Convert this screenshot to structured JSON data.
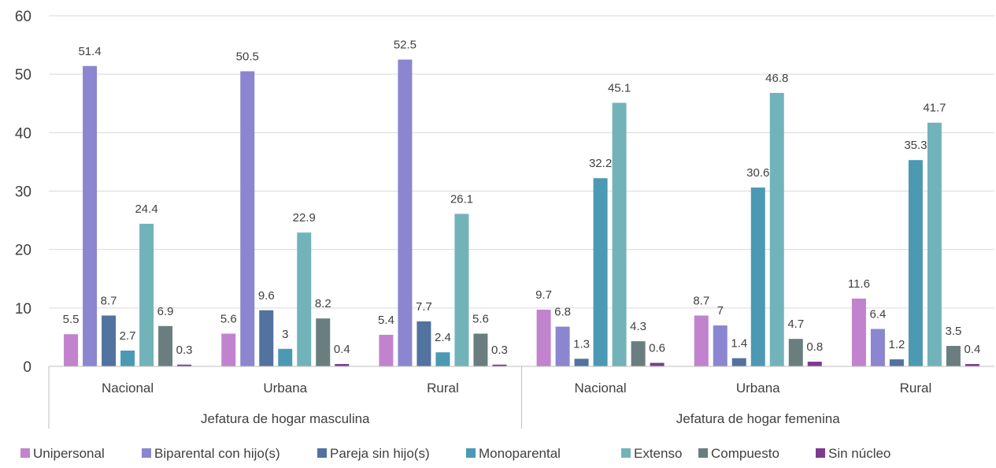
{
  "chart_data": {
    "type": "bar",
    "groups": [
      {
        "label": "Jefatura  de hogar masculina",
        "categories": [
          "Nacional",
          "Urbana",
          "Rural"
        ]
      },
      {
        "label": "Jefatura  de hogar femenina",
        "categories": [
          "Nacional",
          "Urbana",
          "Rural"
        ]
      }
    ],
    "series": [
      {
        "name": "Unipersonal",
        "color": "#c183cd",
        "values": [
          5.5,
          5.6,
          5.4,
          9.7,
          8.7,
          11.6
        ],
        "labels": [
          "5.5",
          "5.6",
          "5.4",
          "9.7",
          "8.7",
          "11.6"
        ]
      },
      {
        "name": "Biparental con hijo(s)",
        "color": "#8b86cf",
        "values": [
          51.4,
          50.5,
          52.5,
          6.8,
          7,
          6.4
        ],
        "labels": [
          "51.4",
          "50.5",
          "52.5",
          "6.8",
          "7",
          "6.4"
        ]
      },
      {
        "name": "Pareja sin hijo(s)",
        "color": "#52729f",
        "values": [
          8.7,
          9.6,
          7.7,
          1.3,
          1.4,
          1.2
        ],
        "labels": [
          "8.7",
          "9.6",
          "7.7",
          "1.3",
          "1.4",
          "1.2"
        ]
      },
      {
        "name": "Monoparental",
        "color": "#4b99b3",
        "values": [
          2.7,
          3,
          2.4,
          32.2,
          30.6,
          35.3
        ],
        "labels": [
          "2.7",
          "3",
          "2.4",
          "32.2",
          "30.6",
          "35.3"
        ]
      },
      {
        "name": "Extenso",
        "color": "#72b3ba",
        "values": [
          24.4,
          22.9,
          26.1,
          45.1,
          46.8,
          41.7
        ],
        "labels": [
          "24.4",
          "22.9",
          "26.1",
          "45.1",
          "46.8",
          "41.7"
        ]
      },
      {
        "name": "Compuesto",
        "color": "#6a7e80",
        "values": [
          6.9,
          8.2,
          5.6,
          4.3,
          4.7,
          3.5
        ],
        "labels": [
          "6.9",
          "8.2",
          "5.6",
          "4.3",
          "4.7",
          "3.5"
        ]
      },
      {
        "name": "Sin núcleo",
        "color": "#7e3a8e",
        "values": [
          0.3,
          0.4,
          0.3,
          0.6,
          0.8,
          0.4
        ],
        "labels": [
          "0.3",
          "0.4",
          "0.3",
          "0.6",
          "0.8",
          "0.4"
        ]
      }
    ],
    "ylim": [
      0,
      60
    ],
    "yticks": [
      "0",
      "10",
      "20",
      "30",
      "40",
      "50",
      "60"
    ],
    "grid": true,
    "legend_position": "bottom"
  }
}
